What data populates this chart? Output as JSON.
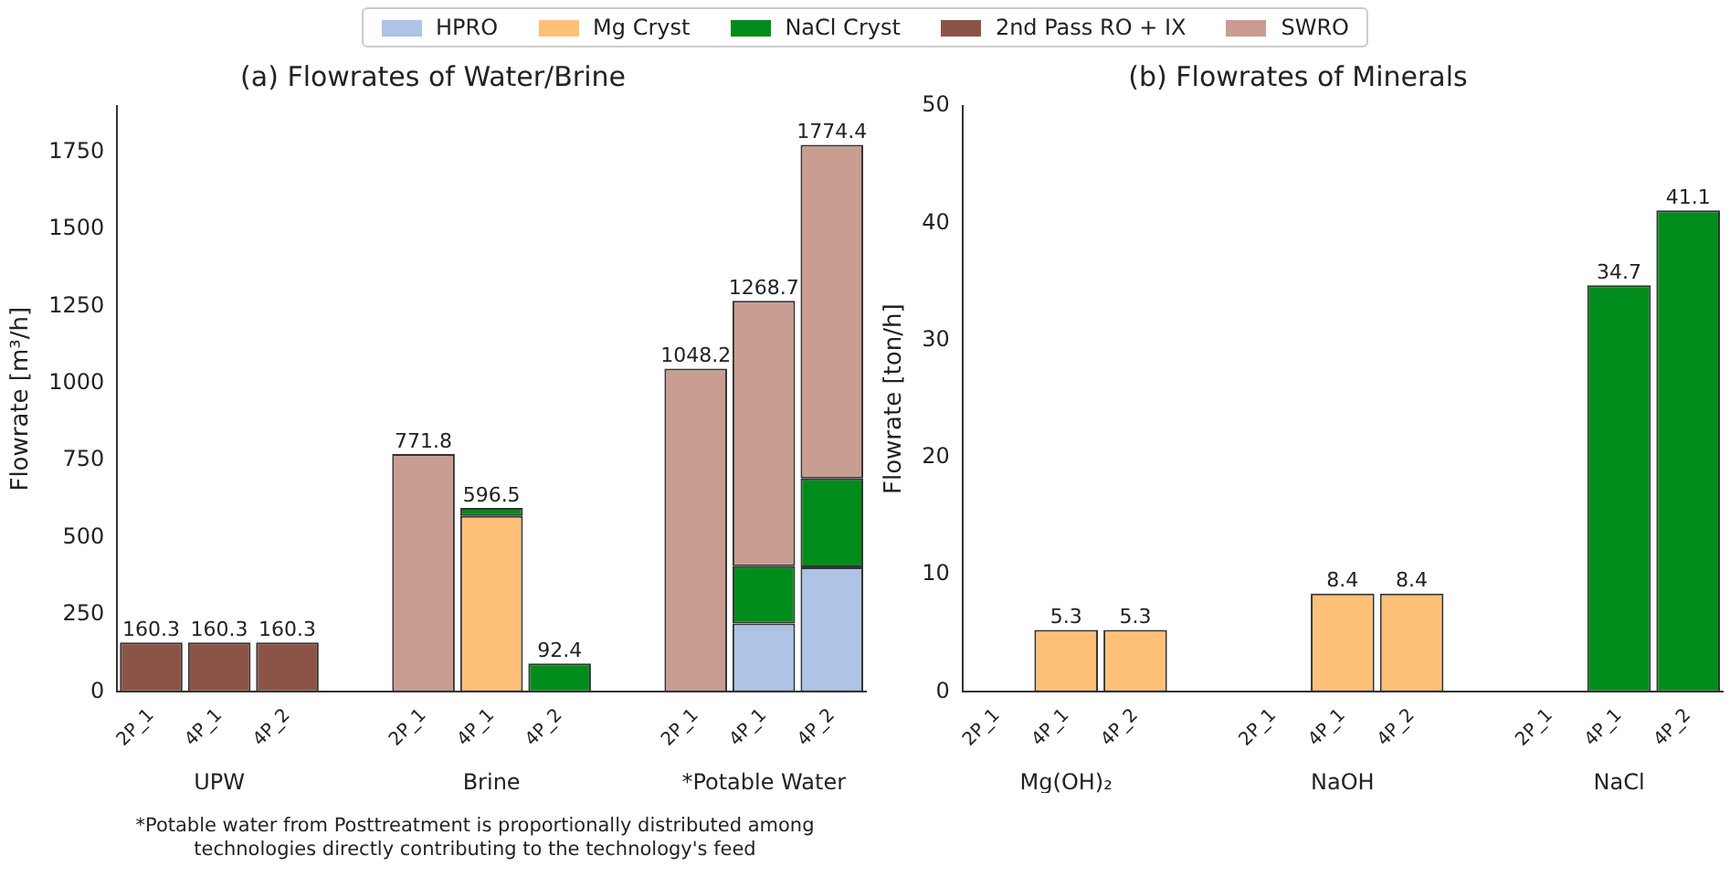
{
  "chart_data": [
    {
      "type": "bar",
      "title": "(a) Flowrates of Water/Brine",
      "ylabel": "Flowrate [m³/h]",
      "stacked": true,
      "categories": [
        "2P_1",
        "4P_1",
        "4P_2",
        null,
        "2P_1",
        "4P_1",
        "4P_2",
        null,
        "2P_1",
        "4P_1",
        "4P_2"
      ],
      "series": [
        {
          "name": "HPRO",
          "color": "#aec3e6",
          "values": [
            null,
            null,
            null,
            null,
            null,
            null,
            null,
            null,
            null,
            222,
            404
          ]
        },
        {
          "name": "Mg Cryst",
          "color": "#ffc078",
          "values": [
            null,
            null,
            null,
            null,
            null,
            571,
            null,
            null,
            null,
            null,
            null
          ]
        },
        {
          "name": "NaCl Cryst",
          "color": "#008c1a",
          "values": [
            null,
            null,
            null,
            null,
            null,
            25.5,
            92.4,
            null,
            null,
            186,
            288
          ]
        },
        {
          "name": "2nd Pass RO + IX",
          "color": "#8c5446",
          "values": [
            160.3,
            160.3,
            160.3,
            null,
            null,
            null,
            null,
            null,
            null,
            null,
            null
          ]
        },
        {
          "name": "SWRO",
          "color": "#c99d92",
          "values": [
            null,
            null,
            null,
            null,
            771.8,
            null,
            null,
            null,
            1048.2,
            860.7,
            1082.4
          ]
        }
      ],
      "totals": [
        "160.3",
        "160.3",
        "160.3",
        null,
        "771.8",
        "596.5",
        "92.4",
        null,
        "1048.2",
        "1268.7",
        "1774.4"
      ],
      "ylim": [
        0,
        1900
      ],
      "yticks": [
        0,
        250,
        500,
        750,
        1000,
        1250,
        1500,
        1750
      ],
      "grid": false,
      "legend": "top",
      "annotations": [
        "UPW",
        "Brine",
        "*Potable Water",
        "*Potable water from Posttreatment is proportionally distributed among technologies directly contributing to the technology's feed"
      ]
    },
    {
      "type": "bar",
      "title": "(b) Flowrates of Minerals",
      "ylabel": "Flowrate [ton/h]",
      "stacked": true,
      "categories": [
        "2P_1",
        "4P_1",
        "4P_2",
        null,
        "2P_1",
        "4P_1",
        "4P_2",
        null,
        "2P_1",
        "4P_1",
        "4P_2"
      ],
      "series": [
        {
          "color": "#ffc078",
          "values": [
            null,
            5.3,
            5.3,
            null,
            null,
            8.4,
            8.4,
            null,
            null,
            null,
            null
          ]
        },
        {
          "color": "#008c1a",
          "values": [
            null,
            null,
            null,
            null,
            null,
            null,
            null,
            null,
            null,
            34.7,
            41.1
          ]
        }
      ],
      "data_labels": true,
      "ylim": [
        0,
        50
      ],
      "yticks": [
        0,
        10,
        20,
        30,
        40,
        50
      ],
      "grid": false,
      "legend": false,
      "annotations": [
        "Mg(OH)₂",
        "NaOH",
        "NaCl"
      ]
    }
  ]
}
